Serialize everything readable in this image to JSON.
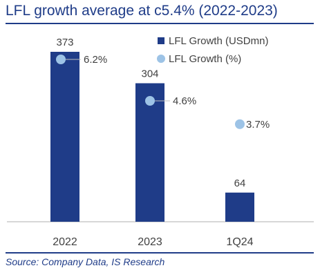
{
  "title": "LFL growth average at c5.4% (2022-2023)",
  "source": "Source: Company Data, IS Research",
  "colors": {
    "bar": "#1F3C88",
    "dot": "#9DC3E6",
    "title": "#1F3C88",
    "axis": "#BFBFBF",
    "text": "#404040"
  },
  "chart_data": {
    "type": "bar",
    "categories": [
      "2022",
      "2023",
      "1Q24"
    ],
    "ylim": [
      0,
      400
    ],
    "series": [
      {
        "name": "LFL Growth (USDmn)",
        "type": "bar",
        "values": [
          373,
          304,
          64
        ],
        "labels": [
          "373",
          "304",
          "64"
        ]
      },
      {
        "name": "LFL Growth (%)",
        "type": "scatter",
        "values": [
          6.2,
          4.6,
          3.7
        ],
        "labels": [
          "6.2%",
          "4.6%",
          "3.7%"
        ]
      }
    ],
    "legend": "top-right",
    "grid": false
  }
}
